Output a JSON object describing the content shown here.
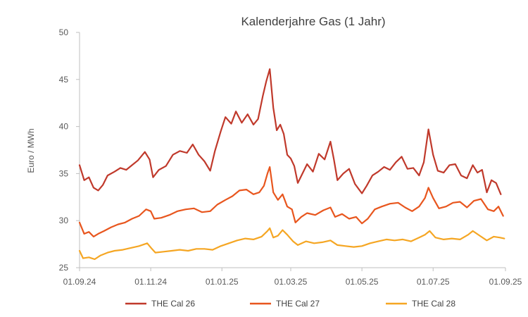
{
  "chart_data": {
    "type": "line",
    "title": "Kalenderjahre Gas (1 Jahr)",
    "ylabel": "Euro / MWh",
    "xlabel": "",
    "ylim": [
      25,
      50
    ],
    "y_ticks": [
      "25",
      "30",
      "35",
      "40",
      "45",
      "50"
    ],
    "x_tick_labels": [
      "01.09.24",
      "01.11.24",
      "01.01.25",
      "01.03.25",
      "01.05.25",
      "01.07.25",
      "01.09.25"
    ],
    "x_tick_dates": [
      "2024-09-01",
      "2024-11-01",
      "2025-01-01",
      "2025-03-01",
      "2025-05-01",
      "2025-07-01",
      "2025-09-01"
    ],
    "grid": false,
    "legend_position": "bottom",
    "series": [
      {
        "name": "THE Cal 26",
        "color": "#C0392B",
        "points": [
          [
            "2024-09-01",
            35.9
          ],
          [
            "2024-09-05",
            34.3
          ],
          [
            "2024-09-09",
            34.6
          ],
          [
            "2024-09-13",
            33.5
          ],
          [
            "2024-09-17",
            33.2
          ],
          [
            "2024-09-21",
            33.8
          ],
          [
            "2024-09-25",
            34.8
          ],
          [
            "2024-10-01",
            35.2
          ],
          [
            "2024-10-06",
            35.6
          ],
          [
            "2024-10-11",
            35.4
          ],
          [
            "2024-10-16",
            35.9
          ],
          [
            "2024-10-21",
            36.4
          ],
          [
            "2024-10-27",
            37.3
          ],
          [
            "2024-10-31",
            36.5
          ],
          [
            "2024-11-03",
            34.6
          ],
          [
            "2024-11-08",
            35.4
          ],
          [
            "2024-11-14",
            35.8
          ],
          [
            "2024-11-20",
            37.0
          ],
          [
            "2024-11-26",
            37.4
          ],
          [
            "2024-12-02",
            37.2
          ],
          [
            "2024-12-07",
            38.1
          ],
          [
            "2024-12-12",
            37.0
          ],
          [
            "2024-12-17",
            36.3
          ],
          [
            "2024-12-22",
            35.3
          ],
          [
            "2024-12-26",
            37.4
          ],
          [
            "2024-12-31",
            39.5
          ],
          [
            "2025-01-04",
            41.0
          ],
          [
            "2025-01-09",
            40.3
          ],
          [
            "2025-01-13",
            41.6
          ],
          [
            "2025-01-18",
            40.4
          ],
          [
            "2025-01-23",
            41.3
          ],
          [
            "2025-01-28",
            40.2
          ],
          [
            "2025-02-01",
            40.8
          ],
          [
            "2025-02-05",
            43.2
          ],
          [
            "2025-02-08",
            44.8
          ],
          [
            "2025-02-11",
            46.1
          ],
          [
            "2025-02-14",
            42.0
          ],
          [
            "2025-02-17",
            39.6
          ],
          [
            "2025-02-20",
            40.2
          ],
          [
            "2025-02-23",
            39.2
          ],
          [
            "2025-02-26",
            37.0
          ],
          [
            "2025-03-01",
            36.6
          ],
          [
            "2025-03-04",
            35.8
          ],
          [
            "2025-03-07",
            34.0
          ],
          [
            "2025-03-11",
            35.0
          ],
          [
            "2025-03-15",
            36.0
          ],
          [
            "2025-03-20",
            35.2
          ],
          [
            "2025-03-25",
            37.1
          ],
          [
            "2025-03-30",
            36.5
          ],
          [
            "2025-04-04",
            38.4
          ],
          [
            "2025-04-07",
            36.5
          ],
          [
            "2025-04-10",
            34.3
          ],
          [
            "2025-04-15",
            35.0
          ],
          [
            "2025-04-20",
            35.5
          ],
          [
            "2025-04-25",
            33.9
          ],
          [
            "2025-05-01",
            32.9
          ],
          [
            "2025-05-05",
            33.7
          ],
          [
            "2025-05-10",
            34.8
          ],
          [
            "2025-05-15",
            35.2
          ],
          [
            "2025-05-20",
            35.7
          ],
          [
            "2025-05-25",
            35.4
          ],
          [
            "2025-05-30",
            36.2
          ],
          [
            "2025-06-04",
            36.8
          ],
          [
            "2025-06-09",
            35.5
          ],
          [
            "2025-06-14",
            35.6
          ],
          [
            "2025-06-19",
            34.8
          ],
          [
            "2025-06-23",
            36.2
          ],
          [
            "2025-06-27",
            39.7
          ],
          [
            "2025-07-01",
            37.0
          ],
          [
            "2025-07-05",
            35.3
          ],
          [
            "2025-07-10",
            35.1
          ],
          [
            "2025-07-15",
            35.9
          ],
          [
            "2025-07-20",
            36.0
          ],
          [
            "2025-07-25",
            34.8
          ],
          [
            "2025-07-30",
            34.5
          ],
          [
            "2025-08-04",
            35.9
          ],
          [
            "2025-08-08",
            35.1
          ],
          [
            "2025-08-12",
            35.4
          ],
          [
            "2025-08-16",
            33.0
          ],
          [
            "2025-08-20",
            34.3
          ],
          [
            "2025-08-24",
            34.0
          ],
          [
            "2025-08-28",
            32.8
          ]
        ]
      },
      {
        "name": "THE Cal 27",
        "color": "#E8561E",
        "points": [
          [
            "2024-09-01",
            29.8
          ],
          [
            "2024-09-05",
            28.6
          ],
          [
            "2024-09-09",
            28.8
          ],
          [
            "2024-09-13",
            28.3
          ],
          [
            "2024-09-17",
            28.6
          ],
          [
            "2024-09-22",
            28.9
          ],
          [
            "2024-09-28",
            29.3
          ],
          [
            "2024-10-04",
            29.6
          ],
          [
            "2024-10-10",
            29.8
          ],
          [
            "2024-10-16",
            30.2
          ],
          [
            "2024-10-22",
            30.5
          ],
          [
            "2024-10-28",
            31.2
          ],
          [
            "2024-11-01",
            31.0
          ],
          [
            "2024-11-04",
            30.2
          ],
          [
            "2024-11-10",
            30.3
          ],
          [
            "2024-11-17",
            30.6
          ],
          [
            "2024-11-24",
            31.0
          ],
          [
            "2024-12-01",
            31.2
          ],
          [
            "2024-12-08",
            31.3
          ],
          [
            "2024-12-15",
            30.9
          ],
          [
            "2024-12-22",
            31.0
          ],
          [
            "2024-12-28",
            31.7
          ],
          [
            "2025-01-04",
            32.2
          ],
          [
            "2025-01-10",
            32.6
          ],
          [
            "2025-01-16",
            33.2
          ],
          [
            "2025-01-22",
            33.3
          ],
          [
            "2025-01-28",
            32.8
          ],
          [
            "2025-02-02",
            33.0
          ],
          [
            "2025-02-06",
            33.7
          ],
          [
            "2025-02-09",
            35.0
          ],
          [
            "2025-02-11",
            35.7
          ],
          [
            "2025-02-14",
            33.0
          ],
          [
            "2025-02-18",
            32.2
          ],
          [
            "2025-02-22",
            32.8
          ],
          [
            "2025-02-26",
            31.5
          ],
          [
            "2025-03-02",
            31.2
          ],
          [
            "2025-03-05",
            29.8
          ],
          [
            "2025-03-10",
            30.4
          ],
          [
            "2025-03-15",
            30.8
          ],
          [
            "2025-03-22",
            30.6
          ],
          [
            "2025-03-29",
            31.1
          ],
          [
            "2025-04-04",
            31.4
          ],
          [
            "2025-04-08",
            30.4
          ],
          [
            "2025-04-14",
            30.7
          ],
          [
            "2025-04-20",
            30.2
          ],
          [
            "2025-04-26",
            30.4
          ],
          [
            "2025-05-01",
            29.7
          ],
          [
            "2025-05-06",
            30.2
          ],
          [
            "2025-05-12",
            31.2
          ],
          [
            "2025-05-18",
            31.5
          ],
          [
            "2025-05-25",
            31.8
          ],
          [
            "2025-06-01",
            31.9
          ],
          [
            "2025-06-07",
            31.4
          ],
          [
            "2025-06-13",
            31.0
          ],
          [
            "2025-06-19",
            31.5
          ],
          [
            "2025-06-24",
            32.4
          ],
          [
            "2025-06-27",
            33.5
          ],
          [
            "2025-07-01",
            32.4
          ],
          [
            "2025-07-06",
            31.3
          ],
          [
            "2025-07-12",
            31.5
          ],
          [
            "2025-07-18",
            31.9
          ],
          [
            "2025-07-24",
            32.0
          ],
          [
            "2025-07-30",
            31.4
          ],
          [
            "2025-08-05",
            32.1
          ],
          [
            "2025-08-11",
            32.3
          ],
          [
            "2025-08-17",
            31.2
          ],
          [
            "2025-08-22",
            31.0
          ],
          [
            "2025-08-26",
            31.5
          ],
          [
            "2025-08-30",
            30.5
          ]
        ]
      },
      {
        "name": "THE Cal 28",
        "color": "#F5A623",
        "points": [
          [
            "2024-09-01",
            26.8
          ],
          [
            "2024-09-04",
            26.0
          ],
          [
            "2024-09-09",
            26.1
          ],
          [
            "2024-09-14",
            25.9
          ],
          [
            "2024-09-19",
            26.3
          ],
          [
            "2024-09-25",
            26.6
          ],
          [
            "2024-10-01",
            26.8
          ],
          [
            "2024-10-08",
            26.9
          ],
          [
            "2024-10-15",
            27.1
          ],
          [
            "2024-10-22",
            27.3
          ],
          [
            "2024-10-29",
            27.6
          ],
          [
            "2024-11-02",
            27.0
          ],
          [
            "2024-11-05",
            26.6
          ],
          [
            "2024-11-12",
            26.7
          ],
          [
            "2024-11-19",
            26.8
          ],
          [
            "2024-11-26",
            26.9
          ],
          [
            "2024-12-03",
            26.8
          ],
          [
            "2024-12-10",
            27.0
          ],
          [
            "2024-12-17",
            27.0
          ],
          [
            "2024-12-24",
            26.9
          ],
          [
            "2024-12-31",
            27.3
          ],
          [
            "2025-01-07",
            27.6
          ],
          [
            "2025-01-14",
            27.9
          ],
          [
            "2025-01-21",
            28.1
          ],
          [
            "2025-01-28",
            28.0
          ],
          [
            "2025-02-04",
            28.3
          ],
          [
            "2025-02-09",
            28.9
          ],
          [
            "2025-02-11",
            29.2
          ],
          [
            "2025-02-14",
            28.2
          ],
          [
            "2025-02-18",
            28.4
          ],
          [
            "2025-02-22",
            29.0
          ],
          [
            "2025-02-26",
            28.5
          ],
          [
            "2025-03-03",
            27.8
          ],
          [
            "2025-03-07",
            27.4
          ],
          [
            "2025-03-14",
            27.8
          ],
          [
            "2025-03-21",
            27.6
          ],
          [
            "2025-03-28",
            27.7
          ],
          [
            "2025-04-04",
            27.9
          ],
          [
            "2025-04-10",
            27.4
          ],
          [
            "2025-04-17",
            27.3
          ],
          [
            "2025-04-24",
            27.2
          ],
          [
            "2025-05-01",
            27.3
          ],
          [
            "2025-05-08",
            27.6
          ],
          [
            "2025-05-15",
            27.8
          ],
          [
            "2025-05-22",
            28.0
          ],
          [
            "2025-05-29",
            27.9
          ],
          [
            "2025-06-05",
            28.0
          ],
          [
            "2025-06-12",
            27.8
          ],
          [
            "2025-06-19",
            28.2
          ],
          [
            "2025-06-24",
            28.5
          ],
          [
            "2025-06-28",
            28.9
          ],
          [
            "2025-07-03",
            28.2
          ],
          [
            "2025-07-10",
            28.0
          ],
          [
            "2025-07-17",
            28.1
          ],
          [
            "2025-07-24",
            28.0
          ],
          [
            "2025-07-31",
            28.5
          ],
          [
            "2025-08-04",
            28.9
          ],
          [
            "2025-08-10",
            28.4
          ],
          [
            "2025-08-16",
            27.9
          ],
          [
            "2025-08-22",
            28.3
          ],
          [
            "2025-08-27",
            28.2
          ],
          [
            "2025-08-31",
            28.1
          ]
        ]
      }
    ]
  }
}
